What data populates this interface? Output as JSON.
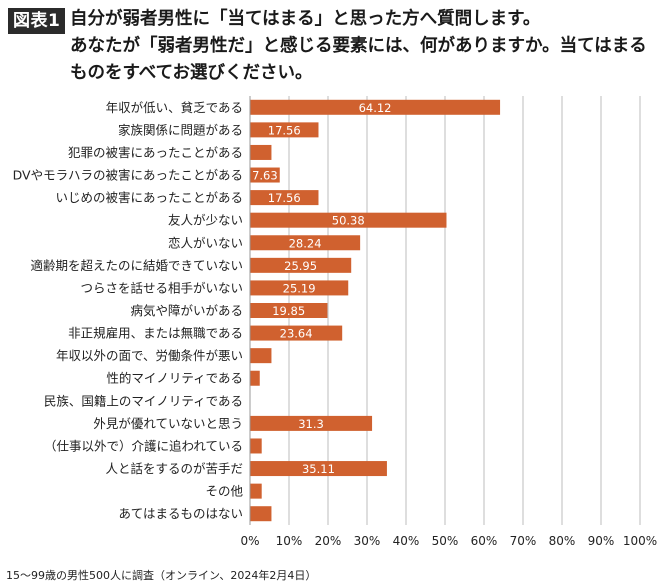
{
  "header": {
    "badge": "図表1",
    "question_lines": [
      "自分が弱者男性に「当てはまる」と思った方へ質問します。",
      "あなたが「弱者男性だ」と感じる要素には、何がありますか。当てはまる",
      "ものをすべてお選びください。"
    ]
  },
  "footnote": "15～99歳の男性500人に調査（オンライン、2024年2月4日）",
  "colors": {
    "bar": "#d0612f",
    "grid": "#bdbdbd",
    "label": "#222222",
    "value_text": "#ffffff"
  },
  "chart_data": {
    "type": "bar",
    "orientation": "horizontal",
    "unit": "%",
    "categories": [
      "年収が低い、貧乏である",
      "家族関係に問題がある",
      "犯罪の被害にあったことがある",
      "DVやモラハラの被害にあったことがある",
      "いじめの被害にあったことがある",
      "友人が少ない",
      "恋人がいない",
      "適齢期を超えたのに結婚できていない",
      "つらさを話せる相手がいない",
      "病気や障がいがある",
      "非正規雇用、または無職である",
      "年収以外の面で、労働条件が悪い",
      "性的マイノリティである",
      "民族、国籍上のマイノリティである",
      "外見が優れていないと思う",
      "（仕事以外で）介護に追われている",
      "人と話をするのが苦手だ",
      "その他",
      "あてはまるものはない"
    ],
    "values": [
      64.12,
      17.56,
      5.5,
      7.63,
      17.56,
      50.38,
      28.24,
      25.95,
      25.19,
      19.85,
      23.64,
      5.5,
      2.5,
      0,
      31.3,
      3.0,
      35.11,
      3.0,
      5.5
    ],
    "value_labels": [
      "64.12",
      "17.56",
      "",
      "7.63",
      "17.56",
      "50.38",
      "28.24",
      "25.95",
      "25.19",
      "19.85",
      "23.64",
      "",
      "",
      "",
      "31.3",
      "",
      "35.11",
      "",
      ""
    ],
    "xlim": [
      0,
      100
    ],
    "xticks": [
      0,
      10,
      20,
      30,
      40,
      50,
      60,
      70,
      80,
      90,
      100
    ],
    "xtick_labels": [
      "0%",
      "10%",
      "20%",
      "30%",
      "40%",
      "50%",
      "60%",
      "70%",
      "80%",
      "90%",
      "100%"
    ],
    "grid": true
  }
}
